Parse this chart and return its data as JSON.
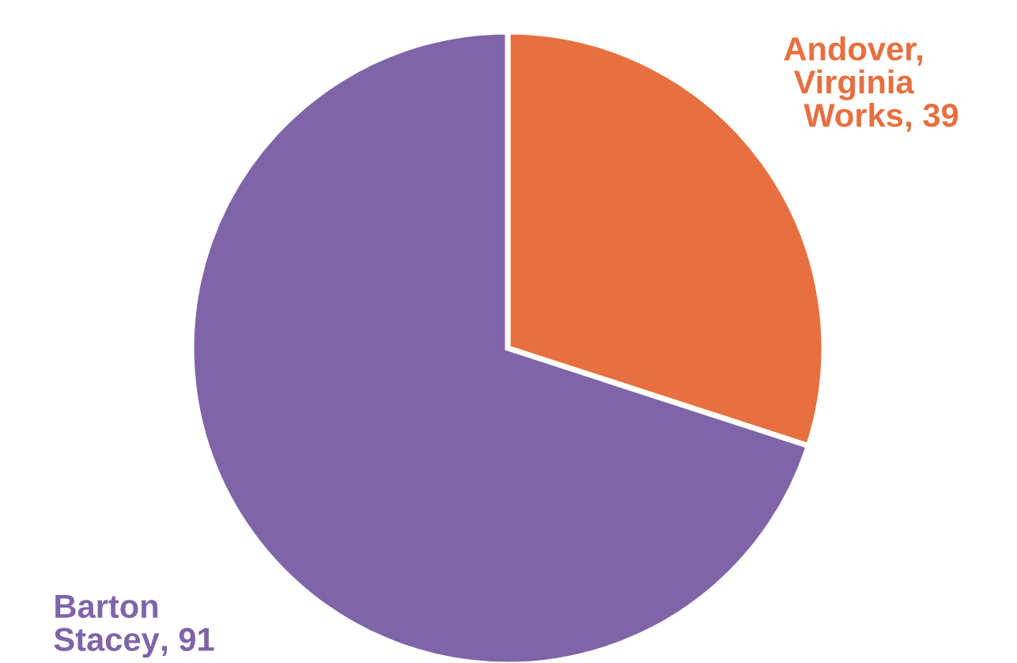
{
  "chart_data": {
    "type": "pie",
    "categories": [
      "Andover, Virginia Works",
      "Barton Stacey"
    ],
    "values": [
      39,
      91
    ],
    "colors": [
      "#e86f3f",
      "#8064a8"
    ],
    "value_labels": [
      ", 39",
      ", 91"
    ],
    "legend": false
  }
}
